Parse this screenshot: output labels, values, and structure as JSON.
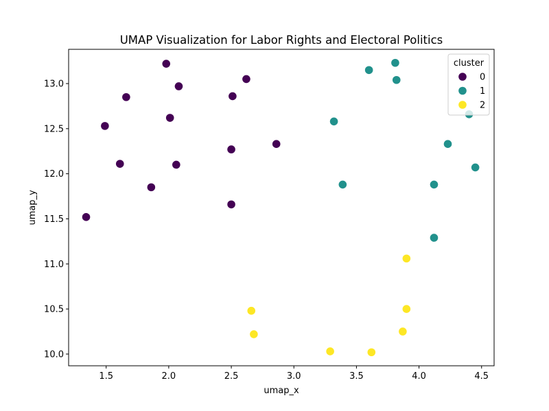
{
  "chart_data": {
    "type": "scatter",
    "title": "UMAP Visualization for Labor Rights and Electoral Politics",
    "xlabel": "umap_x",
    "ylabel": "umap_y",
    "xlim": [
      1.2,
      4.6
    ],
    "ylim": [
      9.87,
      13.38
    ],
    "xticks": [
      "1.5",
      "2.0",
      "2.5",
      "3.0",
      "3.5",
      "4.0",
      "4.5"
    ],
    "yticks": [
      "10.0",
      "10.5",
      "11.0",
      "11.5",
      "12.0",
      "12.5",
      "13.0"
    ],
    "grid": false,
    "legend": {
      "title": "cluster",
      "placement": "top-right"
    },
    "series": [
      {
        "name": "0",
        "color": "#440154",
        "points": [
          {
            "x": 1.98,
            "y": 13.22
          },
          {
            "x": 2.62,
            "y": 13.05
          },
          {
            "x": 2.08,
            "y": 12.97
          },
          {
            "x": 1.66,
            "y": 12.85
          },
          {
            "x": 2.51,
            "y": 12.86
          },
          {
            "x": 2.01,
            "y": 12.62
          },
          {
            "x": 1.49,
            "y": 12.53
          },
          {
            "x": 2.86,
            "y": 12.33
          },
          {
            "x": 2.5,
            "y": 12.27
          },
          {
            "x": 1.61,
            "y": 12.11
          },
          {
            "x": 2.06,
            "y": 12.1
          },
          {
            "x": 1.86,
            "y": 11.85
          },
          {
            "x": 2.5,
            "y": 11.66
          },
          {
            "x": 1.34,
            "y": 11.52
          }
        ]
      },
      {
        "name": "1",
        "color": "#21918c",
        "points": [
          {
            "x": 3.81,
            "y": 13.23
          },
          {
            "x": 3.6,
            "y": 13.15
          },
          {
            "x": 3.82,
            "y": 13.04
          },
          {
            "x": 4.4,
            "y": 12.66
          },
          {
            "x": 3.32,
            "y": 12.58
          },
          {
            "x": 4.23,
            "y": 12.33
          },
          {
            "x": 4.45,
            "y": 12.07
          },
          {
            "x": 3.39,
            "y": 11.88
          },
          {
            "x": 4.12,
            "y": 11.88
          },
          {
            "x": 4.12,
            "y": 11.29
          }
        ]
      },
      {
        "name": "2",
        "color": "#fde725",
        "points": [
          {
            "x": 3.9,
            "y": 11.06
          },
          {
            "x": 2.66,
            "y": 10.48
          },
          {
            "x": 3.9,
            "y": 10.5
          },
          {
            "x": 2.68,
            "y": 10.22
          },
          {
            "x": 3.87,
            "y": 10.25
          },
          {
            "x": 3.29,
            "y": 10.03
          },
          {
            "x": 3.62,
            "y": 10.02
          }
        ]
      }
    ]
  }
}
